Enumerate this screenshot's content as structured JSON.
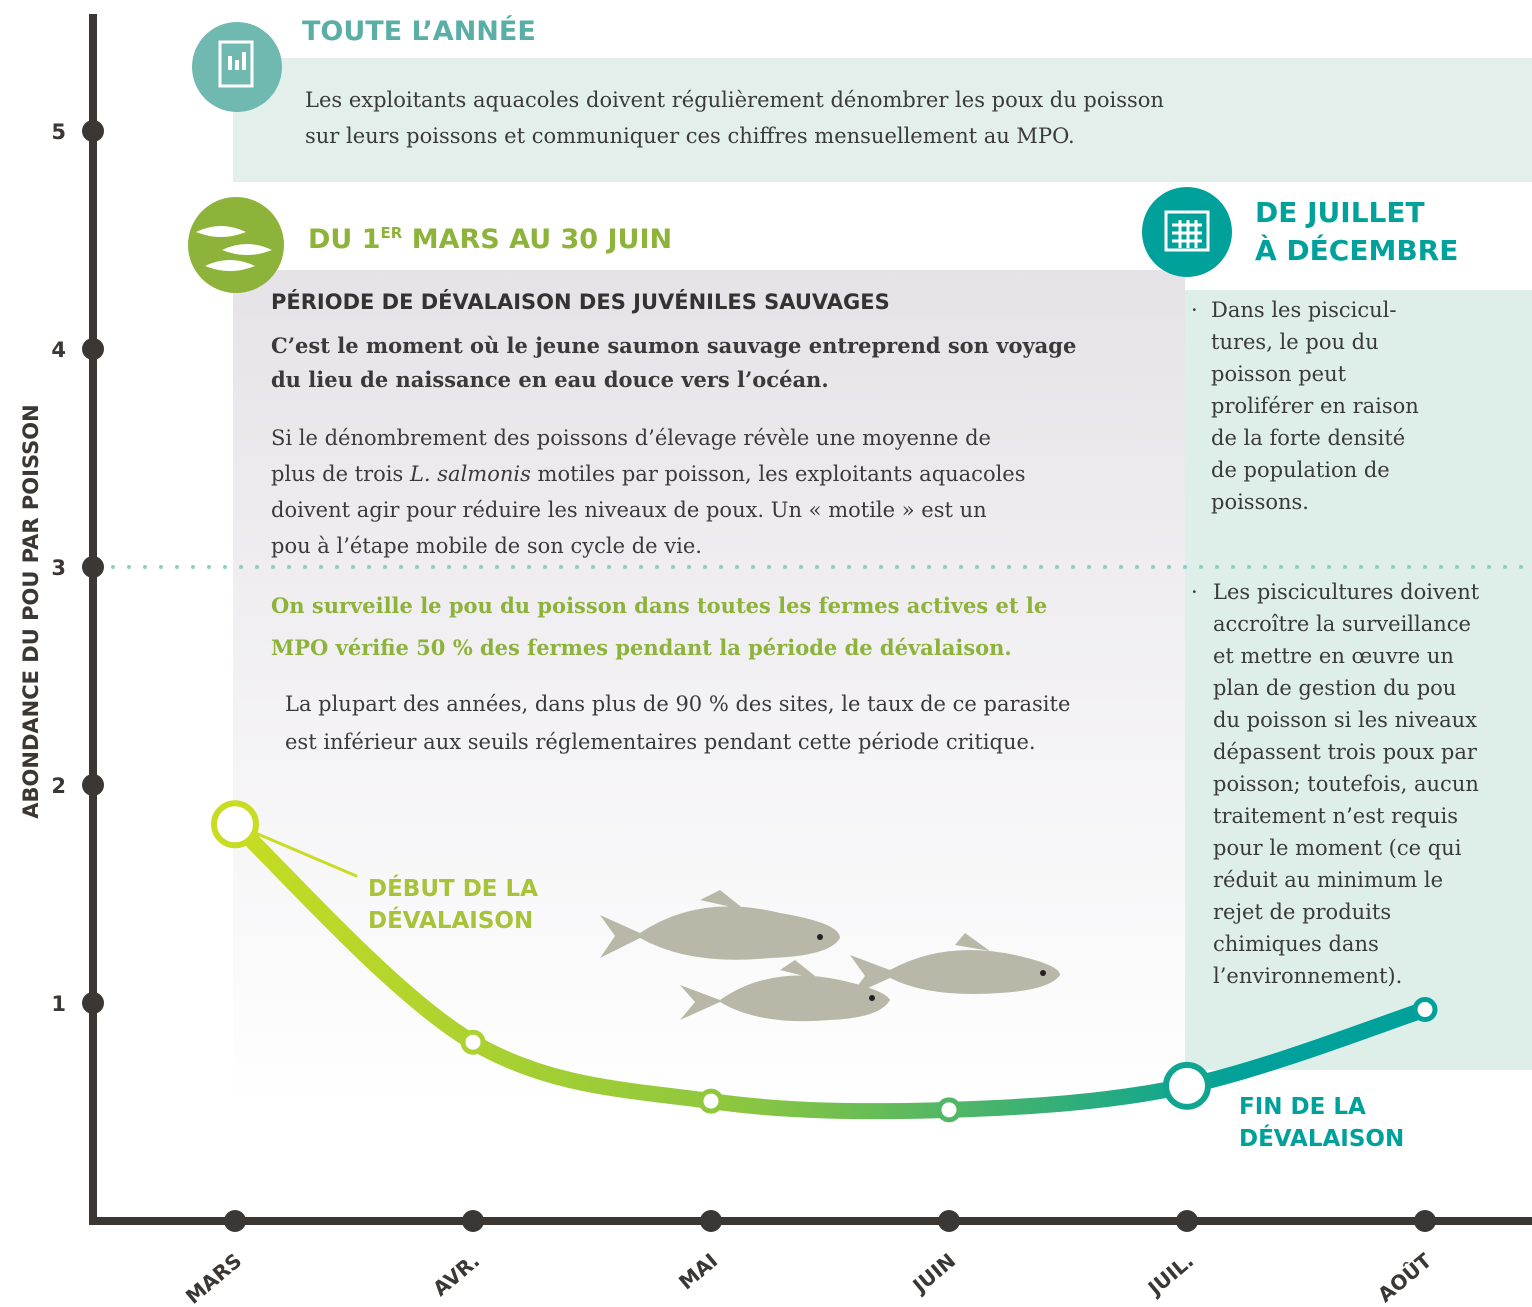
{
  "chart_data": {
    "type": "line",
    "y_label": "ABONDANCE DU POU PAR POISSON",
    "categories": [
      "MARS",
      "AVR.",
      "MAI",
      "JUIN",
      "JUIL.",
      "AOÛT"
    ],
    "values": [
      1.82,
      0.82,
      0.55,
      0.51,
      0.62,
      0.97
    ],
    "ylim": [
      0,
      5.5
    ],
    "yticks": [
      1,
      2,
      3,
      4,
      5
    ],
    "threshold": 3,
    "colors": [
      "#d8e21a",
      "#8cc63f",
      "#00a19a"
    ],
    "annotations": [
      {
        "category": "MARS",
        "text": [
          "DÉBUT DE LA",
          "DÉVALAISON"
        ],
        "color": "#a7c33a"
      },
      {
        "category": "JUIL.",
        "text": [
          "FIN DE LA",
          "DÉVALAISON"
        ],
        "color": "#00a19a"
      }
    ],
    "panels": {
      "year": {
        "title": "TOUTE L’ANNÉE",
        "text": [
          "Les exploitants aquacoles doivent régulièrement dénombrer les poux du poisson",
          "sur leurs poissons et communiquer ces chiffres mensuellement au MPO."
        ]
      },
      "spring": {
        "title": "DU 1",
        "title_sup": "ER",
        "title_rest": " MARS AU 30 JUIN",
        "heading": "PÉRIODE DE DÉVALAISON DES JUVÉNILES SAUVAGES",
        "lead": [
          "C’est le moment où le jeune saumon sauvage entreprend son voyage",
          "du lieu de naissance en eau douce vers l’océan."
        ],
        "paragraph": [
          "Si le dénombrement des poissons d’élevage révèle une moyenne de",
          [
            "plus de trois ",
            "L. salmonis",
            " motiles par poisson, les exploitants aquacoles"
          ],
          "doivent agir pour réduire les niveaux de poux. Un «  motile » est un",
          "pou à l’étape mobile de son cycle de vie."
        ],
        "highlight": [
          "On surveille le pou du poisson dans toutes les fermes actives et le",
          "MPO vérifie 50 % des fermes pendant la période de dévalaison."
        ],
        "note": [
          "La plupart des années, dans plus de 90 % des sites, le taux de ce parasite",
          "est inférieur aux seuils réglementaires pendant cette période critique."
        ]
      },
      "autumn": {
        "title": [
          "DE JUILLET",
          "À DÉCEMBRE"
        ],
        "bullets": [
          [
            "Dans les piscicul-",
            "tures, le pou du",
            "poisson peut",
            "proliférer en raison",
            "de la forte densité",
            "de population de",
            "poissons."
          ],
          [
            "Les piscicultures doivent",
            "accroître la surveillance",
            "et mettre en œuvre un",
            "plan de gestion du pou",
            "du poisson si les niveaux",
            "dépassent trois poux par",
            "poisson; toutefois, aucun",
            "traitement n’est requis",
            "pour le moment (ce qui",
            "réduit au minimum le",
            "rejet de produits",
            "chimiques dans",
            "l’environnement)."
          ]
        ]
      }
    }
  }
}
